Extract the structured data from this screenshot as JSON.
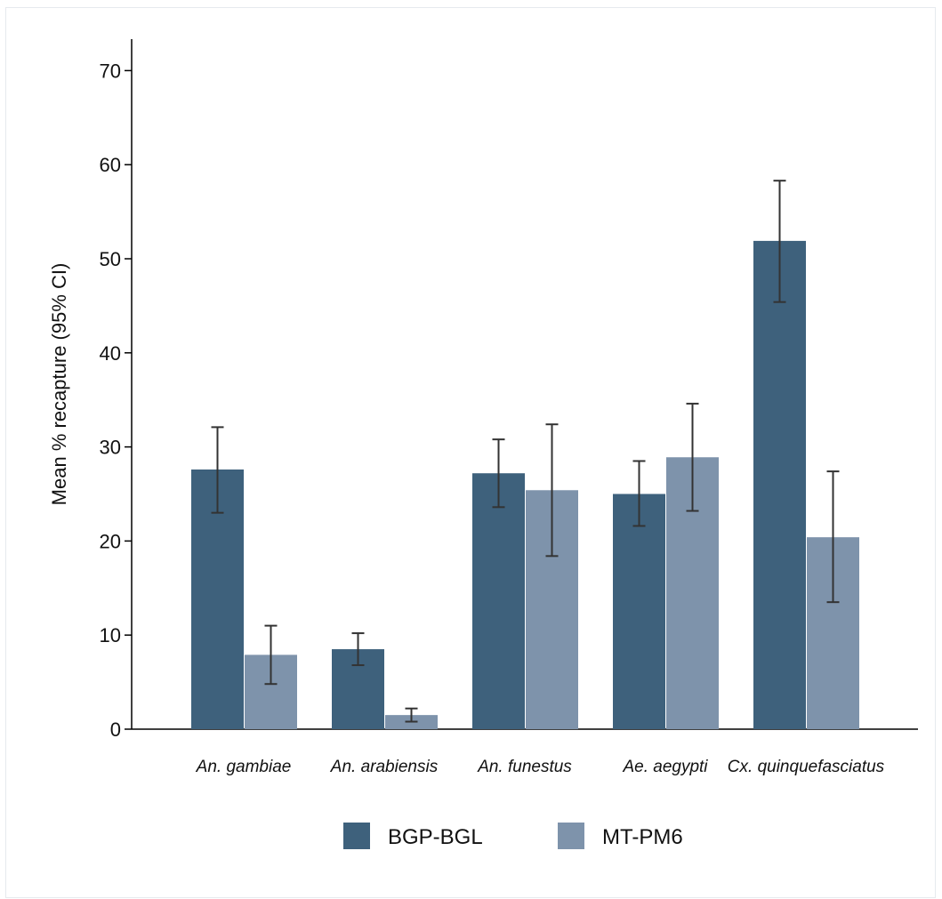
{
  "chart_data": {
    "type": "bar",
    "title": "",
    "xlabel": "",
    "ylabel": "Mean % recapture (95% CI)",
    "ylim": [
      0,
      73
    ],
    "yticks": [
      0,
      10,
      20,
      30,
      40,
      50,
      60,
      70
    ],
    "categories": [
      "An. gambiae",
      "An. arabiensis",
      "An. funestus",
      "Ae. aegypti",
      "Cx. quinquefasciatus"
    ],
    "series": [
      {
        "name": "BGP-BGL",
        "color": "#3e617c",
        "values": [
          27.6,
          8.5,
          27.2,
          25.0,
          51.9
        ],
        "ci_low": [
          23.0,
          6.8,
          23.6,
          21.6,
          45.4
        ],
        "ci_high": [
          32.1,
          10.2,
          30.8,
          28.5,
          58.3
        ]
      },
      {
        "name": "MT-PM6",
        "color": "#7e93ab",
        "values": [
          7.9,
          1.5,
          25.4,
          28.9,
          20.4
        ],
        "ci_low": [
          4.8,
          0.8,
          18.4,
          23.2,
          13.5
        ],
        "ci_high": [
          11.0,
          2.2,
          32.4,
          34.6,
          27.4
        ]
      }
    ],
    "errorbar_color": "#333333",
    "grid": false,
    "legend_position": "bottom"
  }
}
